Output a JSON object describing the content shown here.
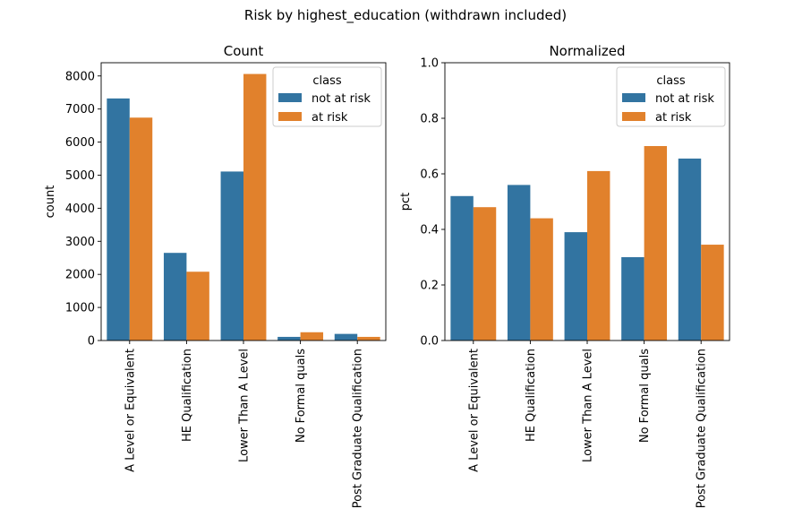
{
  "figure": {
    "suptitle": "Risk by highest_education (withdrawn included)"
  },
  "colors": {
    "not_at_risk": "#3274a1",
    "at_risk": "#e1812c"
  },
  "chart_data": [
    {
      "type": "bar",
      "title": "Count",
      "xlabel": "",
      "ylabel": "count",
      "ylim": [
        0,
        8400
      ],
      "yticks": [
        0,
        1000,
        2000,
        3000,
        4000,
        5000,
        6000,
        7000,
        8000
      ],
      "ytick_labels": [
        "0",
        "1000",
        "2000",
        "3000",
        "4000",
        "5000",
        "6000",
        "7000",
        "8000"
      ],
      "categories": [
        "A Level or Equivalent",
        "HE Qualification",
        "Lower Than A Level",
        "No Formal quals",
        "Post Graduate Qualification"
      ],
      "series": [
        {
          "name": "not at risk",
          "values": [
            7320,
            2650,
            5110,
            110,
            200
          ]
        },
        {
          "name": "at risk",
          "values": [
            6740,
            2080,
            8060,
            250,
            110
          ]
        }
      ],
      "legend": {
        "title": "class",
        "position": "upper right"
      },
      "grid": false
    },
    {
      "type": "bar",
      "title": "Normalized",
      "xlabel": "",
      "ylabel": "pct",
      "ylim": [
        0,
        1.0
      ],
      "yticks": [
        0,
        0.2,
        0.4,
        0.6,
        0.8,
        1.0
      ],
      "ytick_labels": [
        "0.0",
        "0.2",
        "0.4",
        "0.6",
        "0.8",
        "1.0"
      ],
      "categories": [
        "A Level or Equivalent",
        "HE Qualification",
        "Lower Than A Level",
        "No Formal quals",
        "Post Graduate Qualification"
      ],
      "series": [
        {
          "name": "not at risk",
          "values": [
            0.52,
            0.56,
            0.39,
            0.3,
            0.655
          ]
        },
        {
          "name": "at risk",
          "values": [
            0.48,
            0.44,
            0.61,
            0.7,
            0.345
          ]
        }
      ],
      "legend": {
        "title": "class",
        "position": "upper right"
      },
      "grid": false
    }
  ]
}
